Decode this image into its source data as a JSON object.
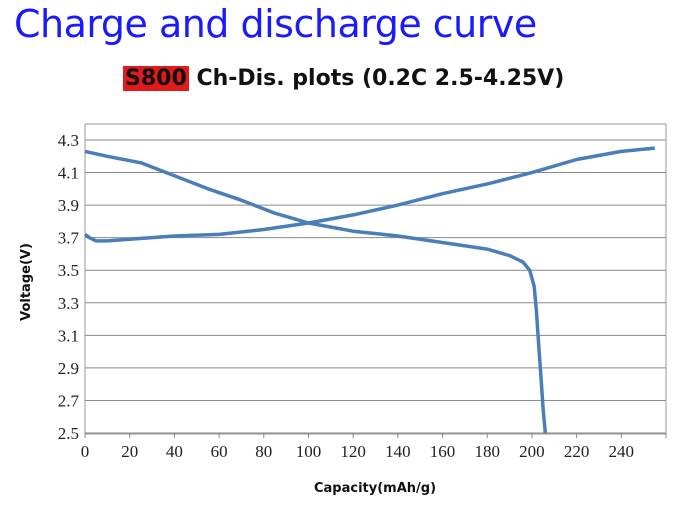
{
  "header": {
    "title": "Charge and discharge curve",
    "subtitle_highlight": "S800",
    "subtitle_rest": " Ch-Dis. plots (0.2C 2.5-4.25V)",
    "highlight_color": "#e31a1a"
  },
  "chart_data": {
    "type": "line",
    "xlabel": "Capacity(mAh/g)",
    "ylabel": "Voltage(V)",
    "xlim": [
      0,
      260
    ],
    "ylim": [
      2.5,
      4.3
    ],
    "xticks": [
      "0",
      "20",
      "40",
      "60",
      "80",
      "100",
      "120",
      "140",
      "160",
      "180",
      "200",
      "220",
      "240"
    ],
    "yticks": [
      "2.5",
      "2.7",
      "2.9",
      "3.1",
      "3.3",
      "3.5",
      "3.7",
      "3.9",
      "4.1",
      "4.3"
    ],
    "grid": "horizontal",
    "line_color": "#4a7ebb",
    "series": [
      {
        "x": [
          0,
          2,
          5,
          10,
          20,
          40,
          60,
          80,
          100,
          120,
          140,
          160,
          180,
          200,
          220,
          240,
          255
        ],
        "y": [
          3.72,
          3.7,
          3.68,
          3.68,
          3.69,
          3.71,
          3.72,
          3.75,
          3.79,
          3.84,
          3.9,
          3.97,
          4.03,
          4.1,
          4.18,
          4.23,
          4.25
        ]
      },
      {
        "x": [
          0,
          10,
          25,
          40,
          55,
          70,
          85,
          100,
          120,
          140,
          160,
          180,
          190,
          196,
          199,
          201,
          202,
          203,
          204,
          205,
          206
        ],
        "y": [
          4.23,
          4.2,
          4.16,
          4.08,
          4.0,
          3.93,
          3.85,
          3.79,
          3.74,
          3.71,
          3.67,
          3.63,
          3.59,
          3.55,
          3.5,
          3.4,
          3.25,
          3.05,
          2.85,
          2.65,
          2.5
        ]
      }
    ]
  }
}
